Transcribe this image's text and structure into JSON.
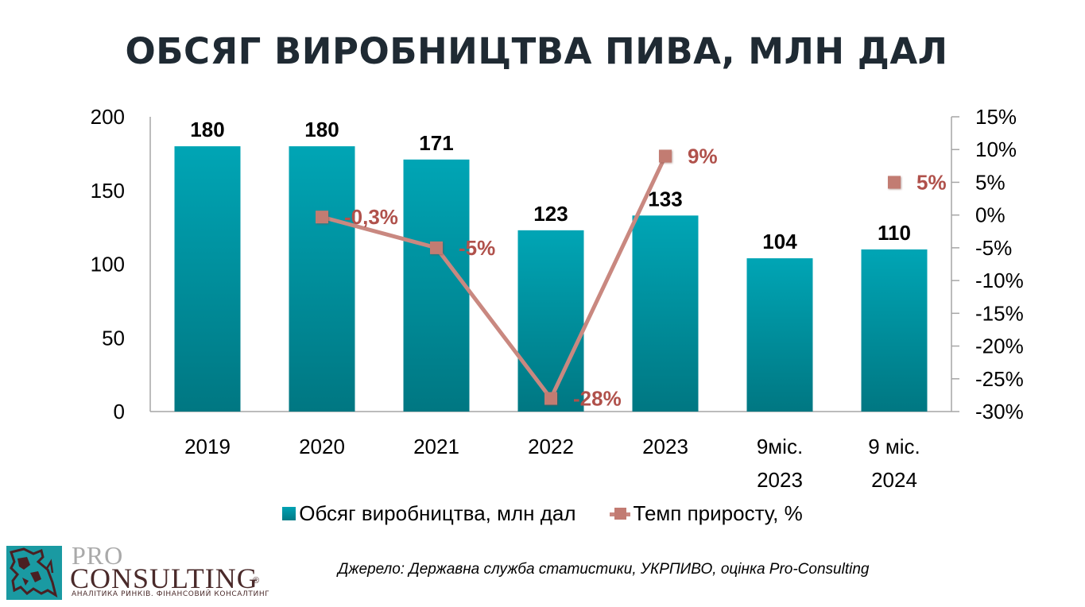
{
  "title": "ОБСЯГ ВИРОБНИЦТВА ПИВА, МЛН ДАЛ",
  "source": "Джерело:  Державна служба статистики, УКРПИВО, оцінка Pro-Consulting",
  "logo": {
    "pro": "PRO",
    "consulting": "CONSULTING",
    "registered": "®",
    "tagline": "АНАЛІТИКА РИНКІВ. ФІНАНСОВИЙ КОНСАЛТИНГ"
  },
  "colors": {
    "bar_top": "#00a5b5",
    "bar_bottom": "#007782",
    "line": "#c98880",
    "marker": "#c27b72",
    "line_label": "#b0514b",
    "axis": "#a6a6a6"
  },
  "chart_data": {
    "type": "bar",
    "title": "ОБСЯГ ВИРОБНИЦТВА ПИВА, МЛН ДАЛ",
    "categories": [
      [
        "2019"
      ],
      [
        "2020"
      ],
      [
        "2021"
      ],
      [
        "2022"
      ],
      [
        "2023"
      ],
      [
        "9міс.",
        "2023"
      ],
      [
        "9 міс.",
        "2024"
      ]
    ],
    "series": [
      {
        "name": "Обсяг виробництва, млн дал",
        "type": "bar",
        "axis": "left",
        "values": [
          180,
          180,
          171,
          123,
          133,
          104,
          110
        ],
        "labels": [
          "180",
          "180",
          "171",
          "123",
          "133",
          "104",
          "110"
        ]
      },
      {
        "name": "Темп приросту, %",
        "type": "line",
        "axis": "right",
        "values": [
          null,
          -0.3,
          -5,
          -28,
          9,
          null,
          5
        ],
        "labels": [
          null,
          "-0,3%",
          "-5%",
          "-28%",
          "9%",
          null,
          "5%"
        ],
        "connected_segments": [
          [
            1,
            2,
            3,
            4
          ]
        ]
      }
    ],
    "y_left": {
      "min": 0,
      "max": 200,
      "step": 50,
      "ticks": [
        "0",
        "50",
        "100",
        "150",
        "200"
      ]
    },
    "y_right": {
      "min": -30,
      "max": 15,
      "step": 5,
      "ticks": [
        "-30%",
        "-25%",
        "-20%",
        "-15%",
        "-10%",
        "-5%",
        "0%",
        "5%",
        "10%",
        "15%"
      ]
    },
    "xlabel": "",
    "ylabel": "",
    "grid": false,
    "legend": {
      "position": "bottom",
      "entries": [
        "Обсяг виробництва, млн дал",
        "Темп приросту, %"
      ]
    }
  }
}
